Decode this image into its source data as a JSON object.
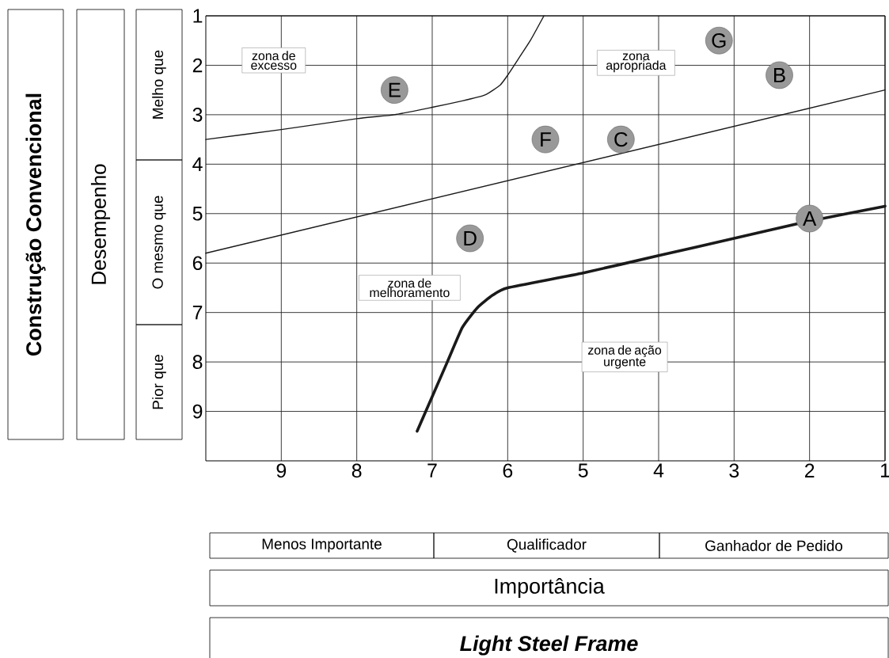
{
  "chart_data": {
    "type": "scatter",
    "xlabel": "Importância",
    "ylabel": "Desempenho",
    "xlim": [
      10,
      1
    ],
    "ylim": [
      10,
      1
    ],
    "xticks": [
      9,
      8,
      7,
      6,
      5,
      4,
      3,
      2,
      1
    ],
    "yticks": [
      1,
      2,
      3,
      4,
      5,
      6,
      7,
      8,
      9
    ],
    "grid": true,
    "marker": "none",
    "series": [
      {
        "color": "#999999",
        "marker": "circle",
        "x": [
          2,
          2.4,
          4.5,
          6.5,
          7.5,
          5.5,
          3.2
        ],
        "values": [
          5.1,
          2.2,
          3.5,
          5.5,
          2.5,
          3.5,
          1.5
        ]
      },
      {
        "type": "line",
        "color": "#1a1a1a",
        "x": [
          10,
          9,
          8,
          7.5,
          7,
          6.6,
          6.3,
          6.1,
          6.0,
          5.85,
          5.7,
          5.52
        ],
        "values": [
          3.5,
          3.3,
          3.08,
          3.0,
          2.85,
          2.72,
          2.6,
          2.4,
          2.2,
          1.85,
          1.5,
          1.0
        ]
      },
      {
        "type": "line",
        "color": "#1a1a1a",
        "x": [
          10,
          1
        ],
        "values": [
          5.8,
          2.5
        ]
      },
      {
        "type": "line",
        "color": "#1a1a1a",
        "x": [
          7.2,
          6.8,
          6.6,
          6.4,
          6.2,
          6.0,
          5.0,
          4.0,
          3.0,
          2.0,
          1.0
        ],
        "values": [
          9.4,
          8.0,
          7.3,
          6.9,
          6.65,
          6.5,
          6.2,
          5.85,
          5.5,
          5.15,
          4.85
        ]
      }
    ],
    "annotations": [
      {
        "text": "A",
        "x": 2,
        "y": 5.1
      },
      {
        "text": "B",
        "x": 2.4,
        "y": 2.2
      },
      {
        "text": "C",
        "x": 4.5,
        "y": 3.5
      },
      {
        "text": "D",
        "x": 6.5,
        "y": 5.5
      },
      {
        "text": "E",
        "x": 7.5,
        "y": 2.5
      },
      {
        "text": "F",
        "x": 5.5,
        "y": 3.5
      },
      {
        "text": "G",
        "x": 3.2,
        "y": 1.5
      },
      "zona de excesso",
      "zona apropriada",
      "zona de melhoramento",
      "zona de ação urgente",
      "Construção Convencional",
      "Melho que",
      "O mesmo que",
      "Pior que",
      "Menos Importante",
      "Qualificador",
      "Ganhador de Pedido",
      "Light Steel Frame"
    ]
  }
}
